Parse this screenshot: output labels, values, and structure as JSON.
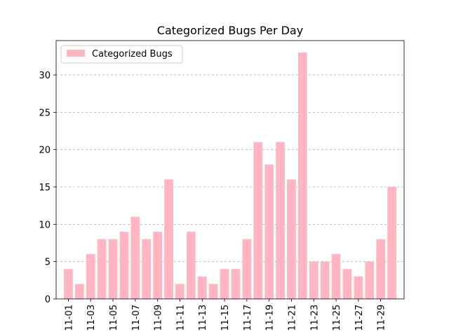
{
  "chart_data": {
    "type": "bar",
    "title": "Categorized Bugs Per Day",
    "xlabel": "",
    "ylabel": "",
    "categories": [
      "11-01",
      "11-02",
      "11-03",
      "11-04",
      "11-05",
      "11-06",
      "11-07",
      "11-08",
      "11-09",
      "11-10",
      "11-11",
      "11-12",
      "11-13",
      "11-14",
      "11-15",
      "11-16",
      "11-17",
      "11-18",
      "11-19",
      "11-20",
      "11-21",
      "11-22",
      "11-23",
      "11-24",
      "11-25",
      "11-26",
      "11-27",
      "11-28",
      "11-29",
      "11-30"
    ],
    "tick_labels": [
      "11-01",
      "11-03",
      "11-05",
      "11-07",
      "11-09",
      "11-11",
      "11-13",
      "11-15",
      "11-17",
      "11-19",
      "11-21",
      "11-23",
      "11-25",
      "11-27",
      "11-29"
    ],
    "series": [
      {
        "name": "Categorized Bugs",
        "color": "#ffb6c1",
        "values": [
          4,
          2,
          6,
          8,
          8,
          9,
          11,
          8,
          9,
          16,
          2,
          9,
          3,
          2,
          4,
          4,
          8,
          21,
          18,
          21,
          16,
          33,
          5,
          5,
          6,
          4,
          3,
          5,
          8,
          15
        ]
      }
    ],
    "ylim": [
      0,
      34.6
    ],
    "yticks": [
      0,
      5,
      10,
      15,
      20,
      25,
      30
    ],
    "grid": "y-dashed",
    "legend": "top-left"
  }
}
